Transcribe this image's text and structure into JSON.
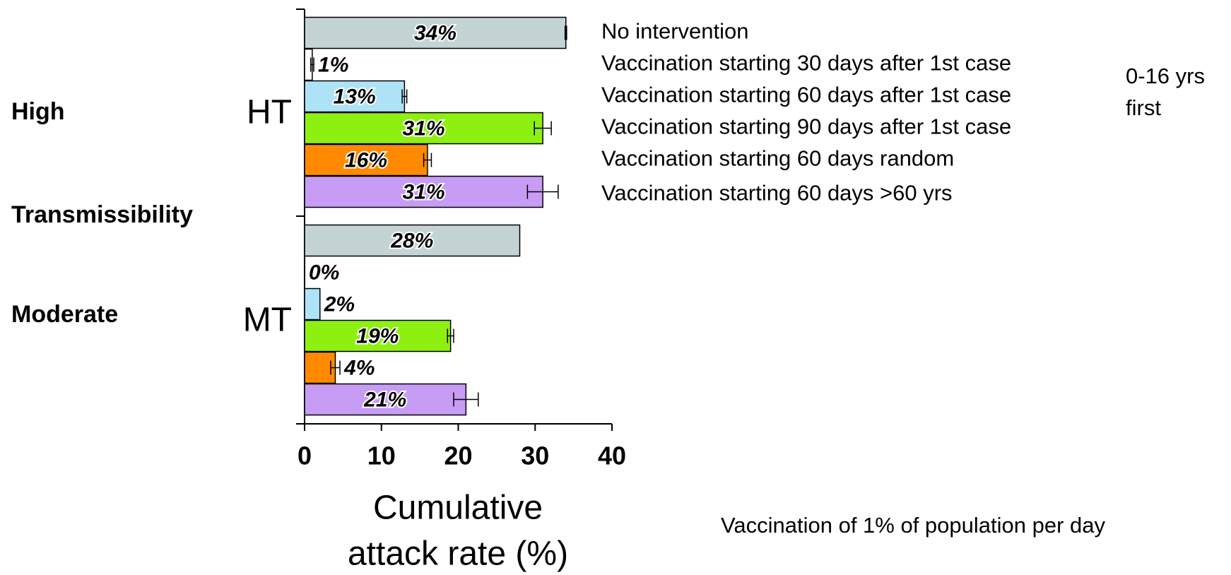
{
  "chart_data": {
    "type": "bar",
    "orientation": "horizontal",
    "categories": [
      "HT",
      "MT"
    ],
    "category_annotations": [
      "High",
      "Transmissibility",
      "Moderate"
    ],
    "series": [
      {
        "name": "No intervention",
        "color": "#c4d3d3",
        "values": [
          34,
          28
        ],
        "value_labels": [
          "34%",
          "28%"
        ],
        "errors": [
          0.1,
          null
        ]
      },
      {
        "name": "Vaccination starting 30 days after 1st case",
        "color": "#ffffff",
        "values": [
          1,
          0
        ],
        "value_labels": [
          "1%",
          "0%"
        ],
        "errors": [
          0.2,
          null
        ]
      },
      {
        "name": "Vaccination starting 60 days after 1st case",
        "color": "#aee3f7",
        "values": [
          13,
          2
        ],
        "value_labels": [
          "13%",
          "2%"
        ],
        "errors": [
          0.3,
          null
        ]
      },
      {
        "name": "Vaccination starting 90 days after 1st case",
        "color": "#8ef010",
        "values": [
          31,
          19
        ],
        "value_labels": [
          "31%",
          "19%"
        ],
        "errors": [
          1.1,
          0.4
        ]
      },
      {
        "name": "Vaccination starting 60 days random",
        "color": "#ff8a00",
        "values": [
          16,
          4
        ],
        "value_labels": [
          "16%",
          "4%"
        ],
        "errors": [
          0.5,
          0.6
        ]
      },
      {
        "name": "Vaccination starting 60 days >60 yrs",
        "color": "#c79cf5",
        "values": [
          31,
          21
        ],
        "value_labels": [
          "31%",
          "21%"
        ],
        "errors": [
          2,
          1.6
        ]
      }
    ],
    "bracket_note": [
      "0-16 yrs",
      "first"
    ],
    "footnote": "Vaccination of 1% of population per day",
    "xlabel": [
      "Cumulative",
      "attack rate (%)"
    ],
    "xlim": [
      0,
      40
    ],
    "xticks": [
      0,
      10,
      20,
      30,
      40
    ]
  }
}
